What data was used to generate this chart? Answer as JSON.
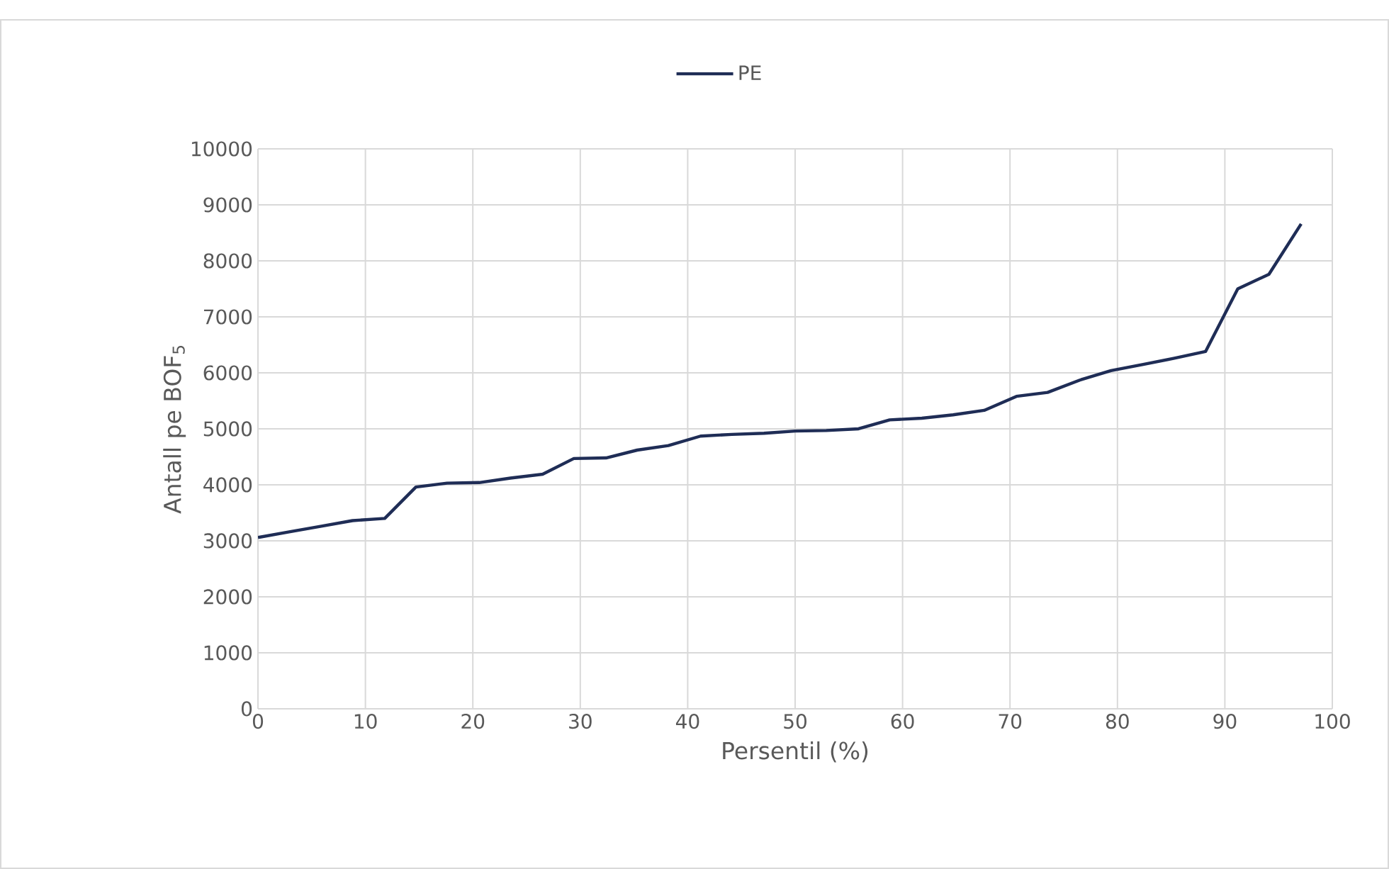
{
  "chart_data": {
    "type": "line",
    "xlabel": "Persentil (%)",
    "ylabel": "Antall pe BOF$_{5}$",
    "x": [
      0,
      2.9,
      5.9,
      8.8,
      11.8,
      14.7,
      17.6,
      20.6,
      23.5,
      26.5,
      29.4,
      32.4,
      35.3,
      38.2,
      41.2,
      44.1,
      47.1,
      50,
      52.9,
      55.9,
      58.8,
      61.8,
      64.7,
      67.6,
      70.6,
      73.5,
      76.5,
      79.4,
      82.4,
      85.3,
      88.2,
      91.2,
      94.1,
      97.1
    ],
    "series": [
      {
        "name": "PE",
        "color": "#1f2d56",
        "values": [
          3060,
          3160,
          3260,
          3360,
          3400,
          3960,
          4030,
          4040,
          4120,
          4190,
          4470,
          4480,
          4620,
          4700,
          4870,
          4900,
          4920,
          4960,
          4970,
          5000,
          5160,
          5190,
          5250,
          5330,
          5580,
          5650,
          5870,
          6040,
          6150,
          6260,
          6380,
          7500,
          7760,
          8660
        ]
      }
    ],
    "xlim": [
      0,
      100
    ],
    "xticks": [
      0,
      10,
      20,
      30,
      40,
      50,
      60,
      70,
      80,
      90,
      100
    ],
    "ylim": [
      0,
      10000
    ],
    "yticks": [
      0,
      1000,
      2000,
      3000,
      4000,
      5000,
      6000,
      7000,
      8000,
      9000,
      10000
    ],
    "grid": true,
    "legend": "top",
    "marker": "none",
    "line_style": "solid"
  }
}
